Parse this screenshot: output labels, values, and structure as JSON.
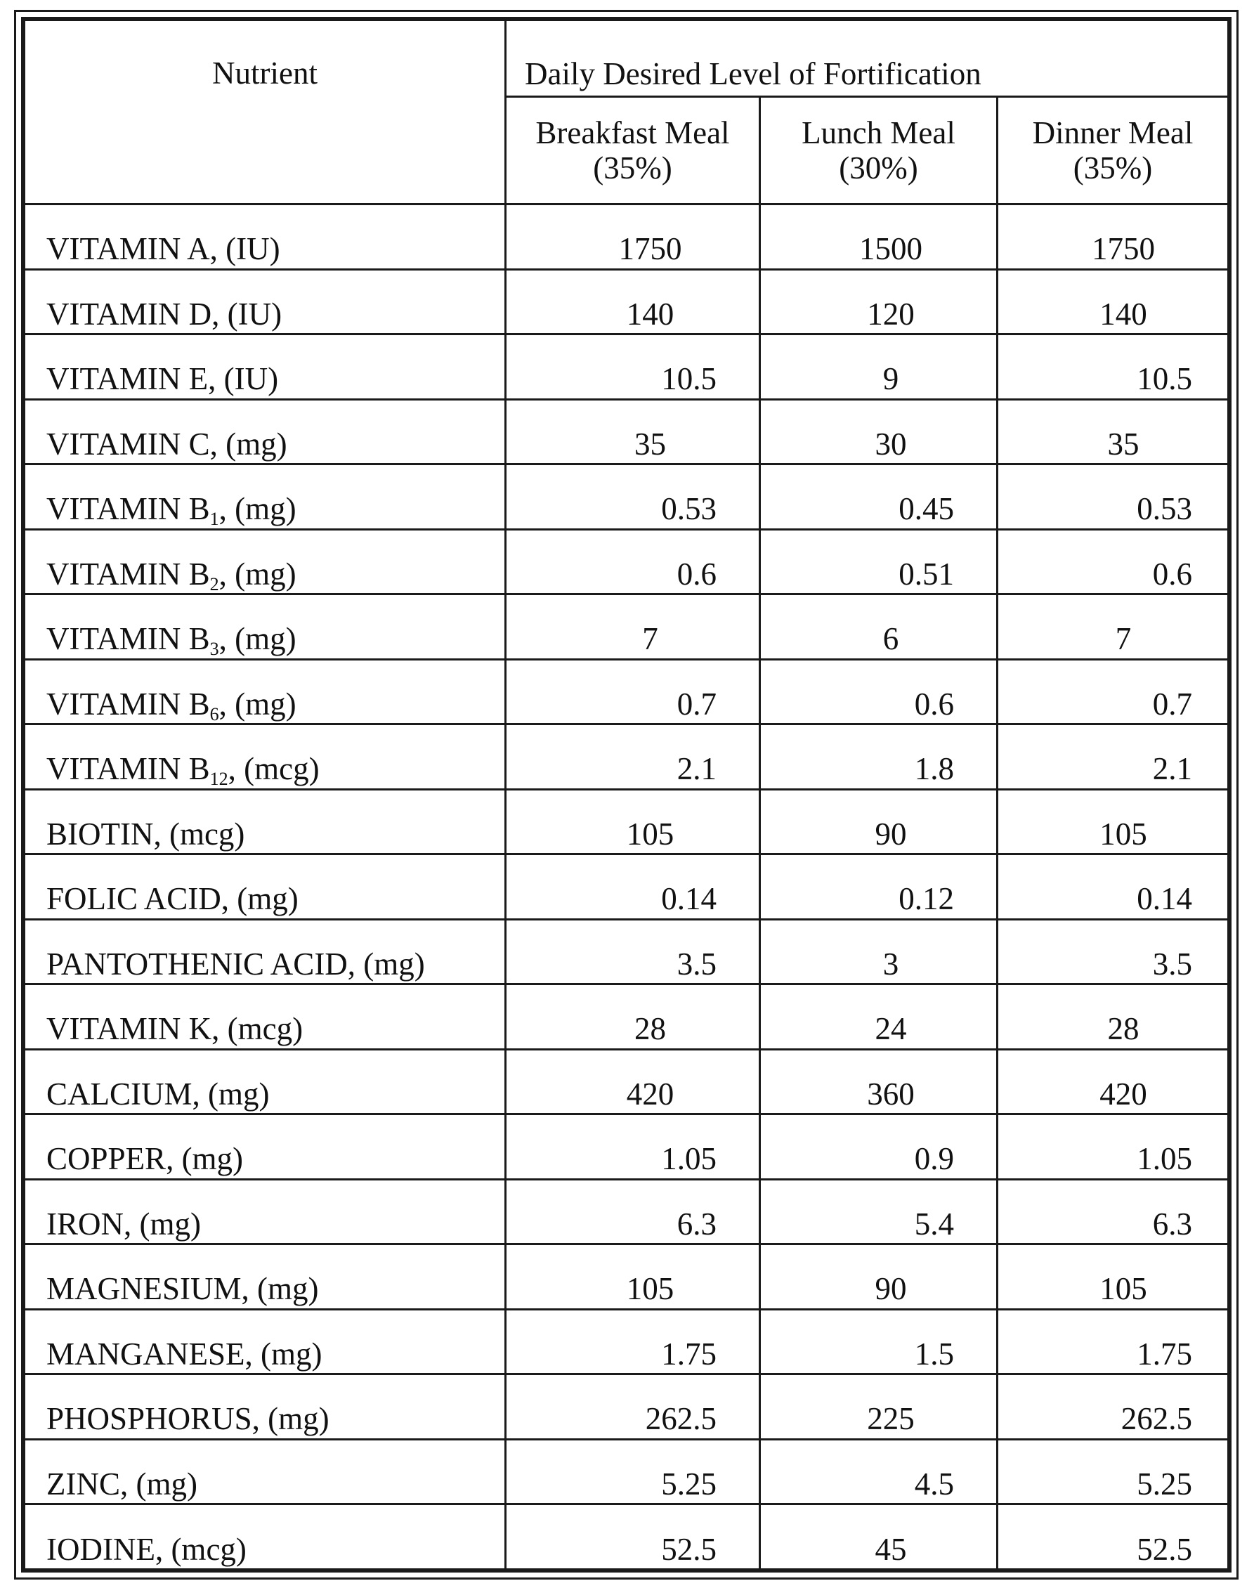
{
  "header": {
    "nutrient": "Nutrient",
    "group": "Daily Desired Level of Fortification",
    "meals": [
      {
        "name": "Breakfast Meal",
        "pct": "(35%)"
      },
      {
        "name": "Lunch Meal",
        "pct": "(30%)"
      },
      {
        "name": "Dinner Meal",
        "pct": "(35%)"
      }
    ]
  },
  "rows": [
    {
      "pre": "VITAMIN A, (IU)",
      "sub": "",
      "post": "",
      "breakfast": "1750",
      "lunch": "1500",
      "dinner": "1750"
    },
    {
      "pre": "VITAMIN D, (IU)",
      "sub": "",
      "post": "",
      "breakfast": "140",
      "lunch": "120",
      "dinner": "140"
    },
    {
      "pre": "VITAMIN E, (IU)",
      "sub": "",
      "post": "",
      "breakfast": "10.5",
      "lunch": "9",
      "dinner": "10.5"
    },
    {
      "pre": "VITAMIN C, (mg)",
      "sub": "",
      "post": "",
      "breakfast": "35",
      "lunch": "30",
      "dinner": "35"
    },
    {
      "pre": "VITAMIN B",
      "sub": "1",
      "post": ", (mg)",
      "breakfast": "0.53",
      "lunch": "0.45",
      "dinner": "0.53"
    },
    {
      "pre": "VITAMIN B",
      "sub": "2",
      "post": ", (mg)",
      "breakfast": "0.6",
      "lunch": "0.51",
      "dinner": "0.6"
    },
    {
      "pre": "VITAMIN B",
      "sub": "3",
      "post": ", (mg)",
      "breakfast": "7",
      "lunch": "6",
      "dinner": "7"
    },
    {
      "pre": "VITAMIN B",
      "sub": "6",
      "post": ", (mg)",
      "breakfast": "0.7",
      "lunch": "0.6",
      "dinner": "0.7"
    },
    {
      "pre": "VITAMIN B",
      "sub": "12",
      "post": ", (mcg)",
      "breakfast": "2.1",
      "lunch": "1.8",
      "dinner": "2.1"
    },
    {
      "pre": "BIOTIN, (mcg)",
      "sub": "",
      "post": "",
      "breakfast": "105",
      "lunch": "90",
      "dinner": "105"
    },
    {
      "pre": "FOLIC ACID, (mg)",
      "sub": "",
      "post": "",
      "breakfast": "0.14",
      "lunch": "0.12",
      "dinner": "0.14"
    },
    {
      "pre": "PANTOTHENIC ACID, (mg)",
      "sub": "",
      "post": "",
      "breakfast": "3.5",
      "lunch": "3",
      "dinner": "3.5"
    },
    {
      "pre": "VITAMIN K, (mcg)",
      "sub": "",
      "post": "",
      "breakfast": "28",
      "lunch": "24",
      "dinner": "28"
    },
    {
      "pre": "CALCIUM, (mg)",
      "sub": "",
      "post": "",
      "breakfast": "420",
      "lunch": "360",
      "dinner": "420"
    },
    {
      "pre": "COPPER, (mg)",
      "sub": "",
      "post": "",
      "breakfast": "1.05",
      "lunch": "0.9",
      "dinner": "1.05"
    },
    {
      "pre": "IRON, (mg)",
      "sub": "",
      "post": "",
      "breakfast": "6.3",
      "lunch": "5.4",
      "dinner": "6.3"
    },
    {
      "pre": "MAGNESIUM, (mg)",
      "sub": "",
      "post": "",
      "breakfast": "105",
      "lunch": "90",
      "dinner": "105"
    },
    {
      "pre": "MANGANESE, (mg)",
      "sub": "",
      "post": "",
      "breakfast": "1.75",
      "lunch": "1.5",
      "dinner": "1.75"
    },
    {
      "pre": "PHOSPHORUS, (mg)",
      "sub": "",
      "post": "",
      "breakfast": "262.5",
      "lunch": "225",
      "dinner": "262.5"
    },
    {
      "pre": "ZINC, (mg)",
      "sub": "",
      "post": "",
      "breakfast": "5.25",
      "lunch": "4.5",
      "dinner": "5.25"
    },
    {
      "pre": "IODINE, (mcg)",
      "sub": "",
      "post": "",
      "breakfast": "52.5",
      "lunch": "45",
      "dinner": "52.5"
    }
  ]
}
